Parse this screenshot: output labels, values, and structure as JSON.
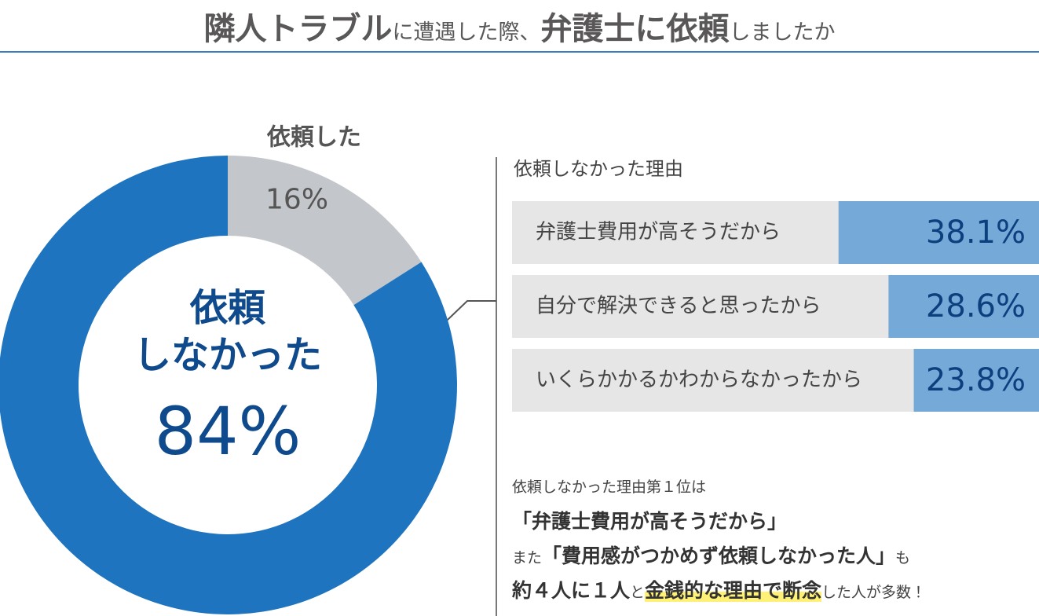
{
  "title": [
    "隣人トラブル",
    "に遭遇した際、",
    "弁護士に依頼",
    "しましたか"
  ],
  "chart_data": [
    {
      "type": "donut",
      "categories": [
        "依頼した",
        "依頼しなかった"
      ],
      "center_label": "依頼\nしなかった",
      "values": [
        16,
        84
      ],
      "value_labels": [
        "16%",
        "84%"
      ],
      "colors": [
        "#c3c6ca",
        "#1f74bf"
      ]
    },
    {
      "type": "hbar",
      "title": "依頼しなかった理由",
      "categories": [
        "弁護士費用が高そうだから",
        "自分で解決できると思ったから",
        "いくらかかるかわからなかったから"
      ],
      "values": [
        38.1,
        28.6,
        23.8
      ],
      "value_labels": [
        "38.1%",
        "28.6%",
        "23.8%"
      ],
      "color": "#74a9d8"
    }
  ],
  "notes": [
    "依頼しなかった理由第１位は",
    "「弁護士費用が高そうだから」",
    [
      "また",
      "「費用感がつかめず依頼しなかった人」",
      "も"
    ],
    [
      "約４人に１人",
      "と",
      "金銭的な理由で断念",
      "した人が多数！"
    ]
  ]
}
